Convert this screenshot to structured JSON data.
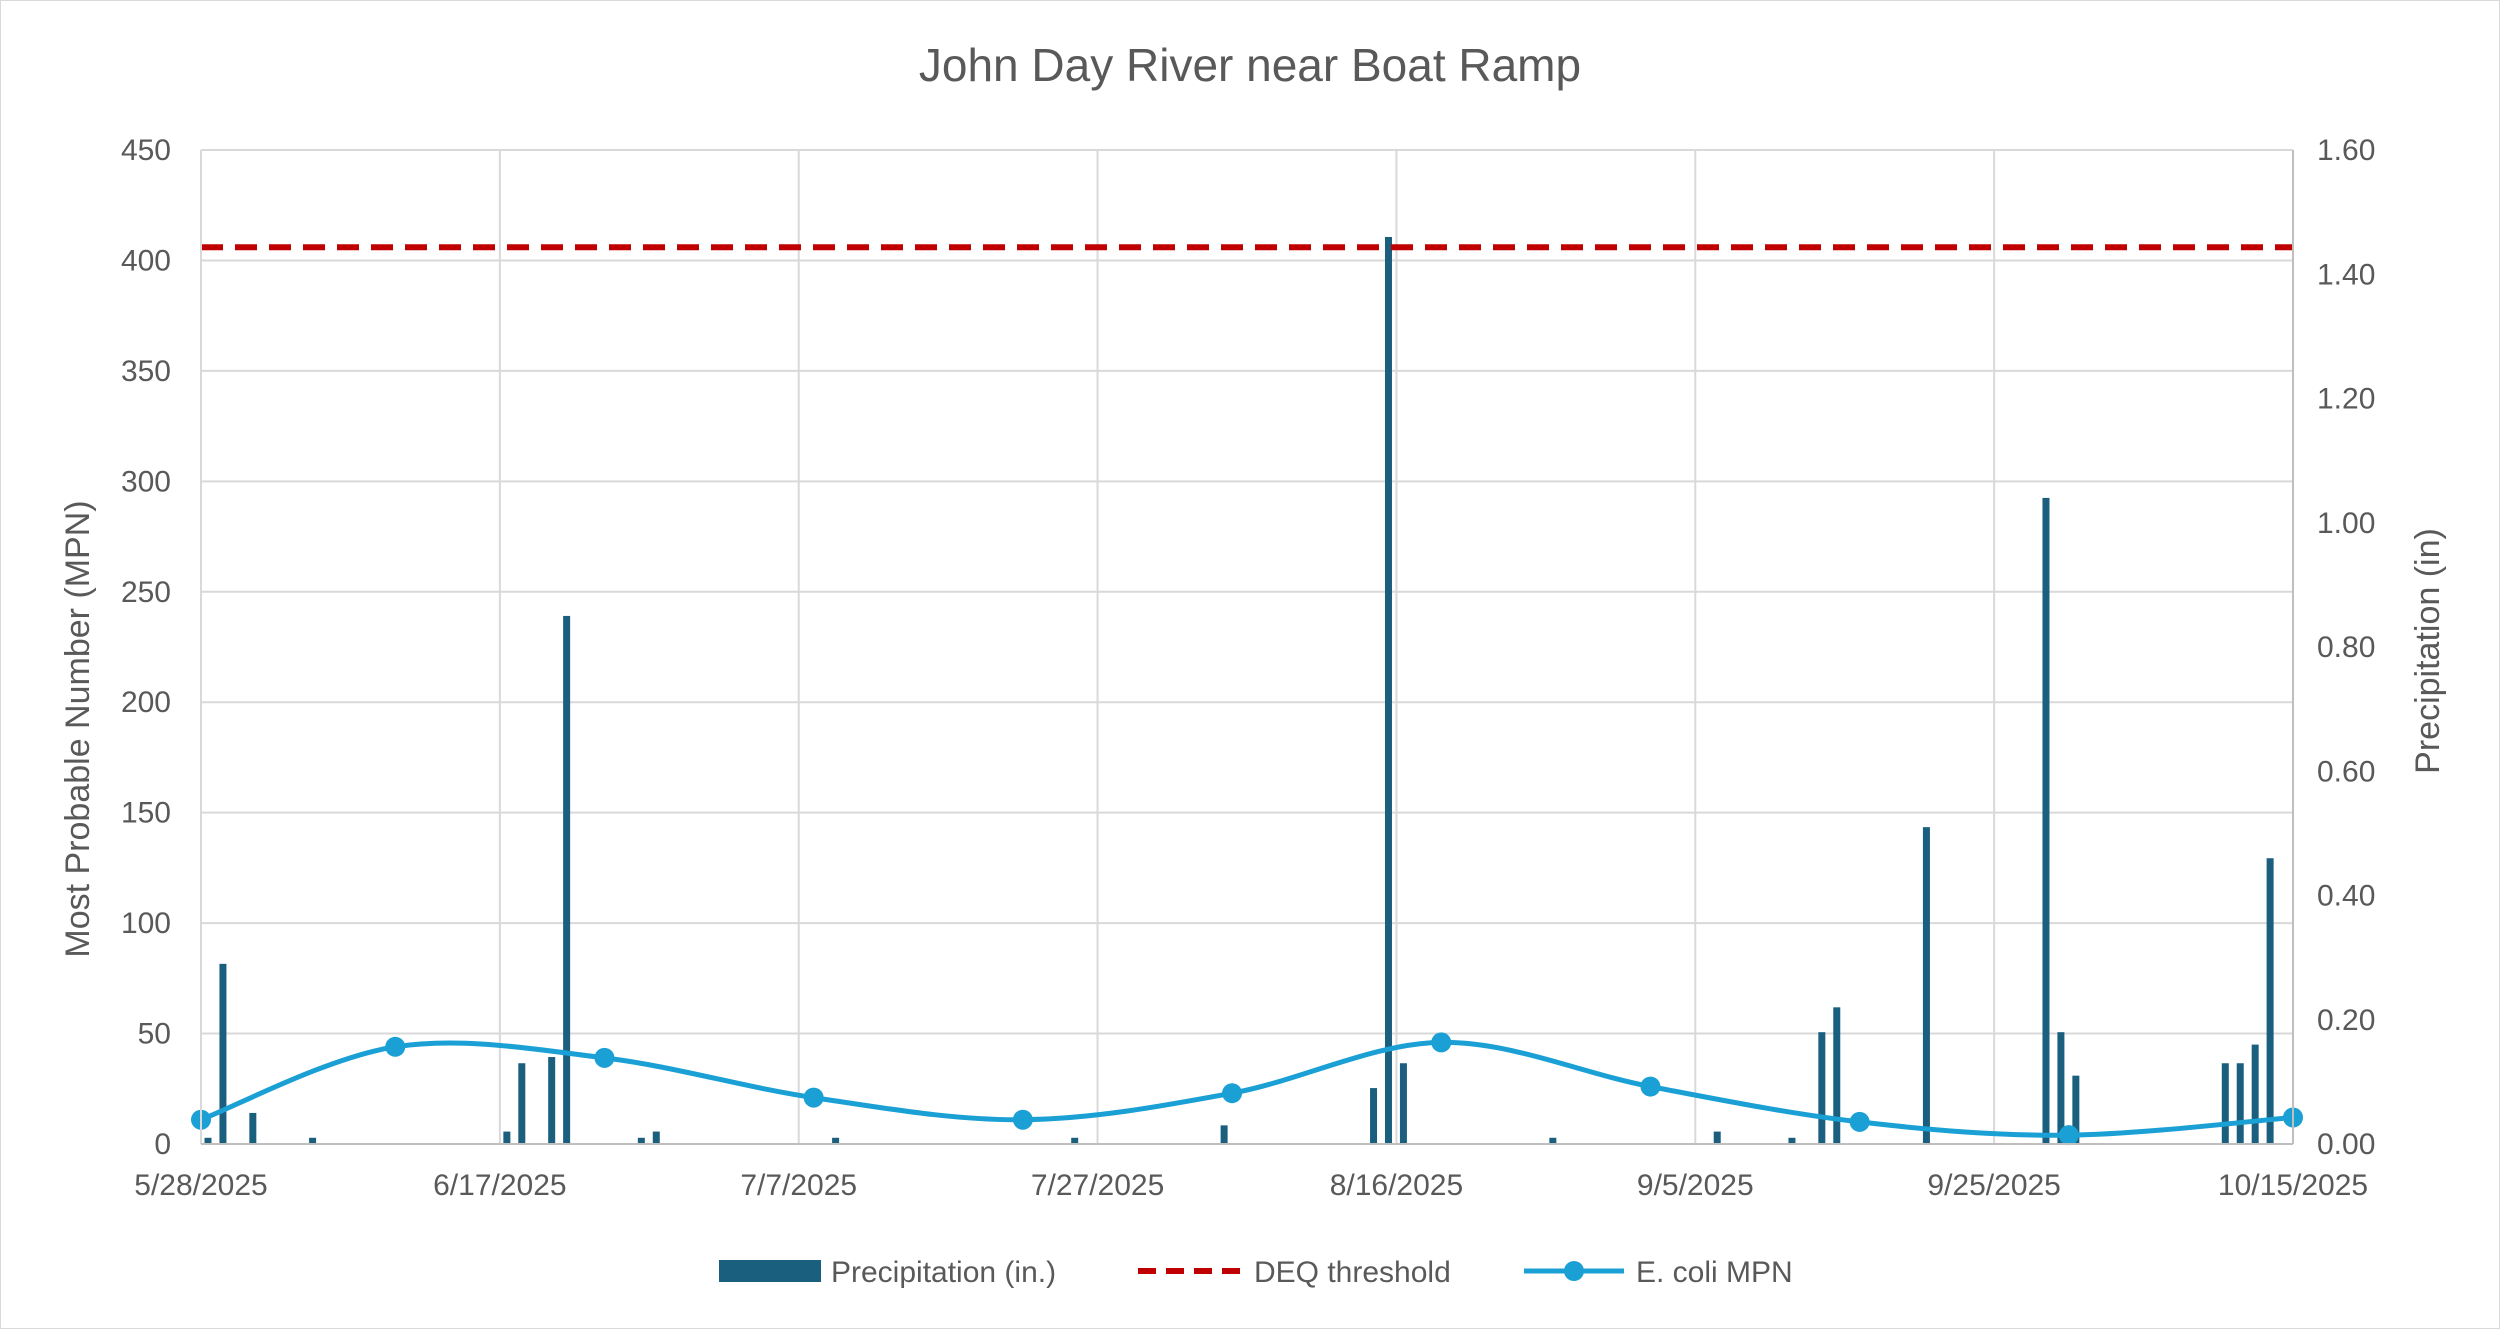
{
  "chart_data": {
    "type": "bar+line",
    "title": "John Day River near Boat Ramp",
    "ylabel_left": "Most Probable Number (MPN)",
    "ylabel_right": "Precipitation (in)",
    "y_left_range": [
      0,
      450
    ],
    "y_left_ticks": [
      "0",
      "50",
      "100",
      "150",
      "200",
      "250",
      "300",
      "350",
      "400",
      "450"
    ],
    "y_right_range": [
      0,
      1.6
    ],
    "y_right_ticks": [
      "0.00",
      "0.20",
      "0.40",
      "0.60",
      "0.80",
      "1.00",
      "1.20",
      "1.40",
      "1.60"
    ],
    "x_range": [
      "2025-05-28",
      "2025-10-15"
    ],
    "x_ticks": [
      {
        "date": "2025-05-28",
        "label": "5/28/2025"
      },
      {
        "date": "2025-06-17",
        "label": "6/17/2025"
      },
      {
        "date": "2025-07-07",
        "label": "7/7/2025"
      },
      {
        "date": "2025-07-27",
        "label": "7/27/2025"
      },
      {
        "date": "2025-08-16",
        "label": "8/16/2025"
      },
      {
        "date": "2025-09-05",
        "label": "9/5/2025"
      },
      {
        "date": "2025-09-25",
        "label": "9/25/2025"
      },
      {
        "date": "2025-10-15",
        "label": "10/15/2025"
      }
    ],
    "grid": true,
    "legend_position": "bottom",
    "series": [
      {
        "name": "Precipitation (in.)",
        "type": "bar",
        "axis": "right",
        "color": "#1b5f7e",
        "points": [
          {
            "x": "2025-05-28",
            "y": 0.01
          },
          {
            "x": "2025-05-29",
            "y": 0.29
          },
          {
            "x": "2025-05-31",
            "y": 0.05
          },
          {
            "x": "2025-06-04",
            "y": 0.01
          },
          {
            "x": "2025-06-17",
            "y": 0.02
          },
          {
            "x": "2025-06-18",
            "y": 0.13
          },
          {
            "x": "2025-06-20",
            "y": 0.14
          },
          {
            "x": "2025-06-21",
            "y": 0.85
          },
          {
            "x": "2025-06-26",
            "y": 0.01
          },
          {
            "x": "2025-06-27",
            "y": 0.02
          },
          {
            "x": "2025-07-09",
            "y": 0.01
          },
          {
            "x": "2025-07-25",
            "y": 0.01
          },
          {
            "x": "2025-08-04",
            "y": 0.03
          },
          {
            "x": "2025-08-14",
            "y": 0.09
          },
          {
            "x": "2025-08-15",
            "y": 1.46
          },
          {
            "x": "2025-08-16",
            "y": 0.13
          },
          {
            "x": "2025-08-26",
            "y": 0.01
          },
          {
            "x": "2025-09-06",
            "y": 0.02
          },
          {
            "x": "2025-09-11",
            "y": 0.01
          },
          {
            "x": "2025-09-13",
            "y": 0.18
          },
          {
            "x": "2025-09-14",
            "y": 0.22
          },
          {
            "x": "2025-09-20",
            "y": 0.51
          },
          {
            "x": "2025-09-28",
            "y": 1.04
          },
          {
            "x": "2025-09-29",
            "y": 0.18
          },
          {
            "x": "2025-09-30",
            "y": 0.11
          },
          {
            "x": "2025-10-10",
            "y": 0.13
          },
          {
            "x": "2025-10-11",
            "y": 0.13
          },
          {
            "x": "2025-10-12",
            "y": 0.16
          },
          {
            "x": "2025-10-13",
            "y": 0.46
          }
        ]
      },
      {
        "name": "DEQ threshold",
        "type": "line",
        "style": "dashed",
        "axis": "left",
        "color": "#c00000",
        "points": [
          {
            "x": "2025-05-28",
            "y": 406
          },
          {
            "x": "2025-10-15",
            "y": 406
          }
        ]
      },
      {
        "name": "E. coli MPN",
        "type": "line",
        "style": "smooth-markers",
        "axis": "left",
        "color": "#1aa0d4",
        "points": [
          {
            "x": "2025-05-28",
            "y": 11
          },
          {
            "x": "2025-06-10",
            "y": 44
          },
          {
            "x": "2025-06-24",
            "y": 39
          },
          {
            "x": "2025-07-08",
            "y": 21
          },
          {
            "x": "2025-07-22",
            "y": 11
          },
          {
            "x": "2025-08-05",
            "y": 23
          },
          {
            "x": "2025-08-19",
            "y": 46
          },
          {
            "x": "2025-09-02",
            "y": 26
          },
          {
            "x": "2025-09-16",
            "y": 10
          },
          {
            "x": "2025-09-30",
            "y": 4
          },
          {
            "x": "2025-10-15",
            "y": 12
          }
        ]
      }
    ]
  }
}
